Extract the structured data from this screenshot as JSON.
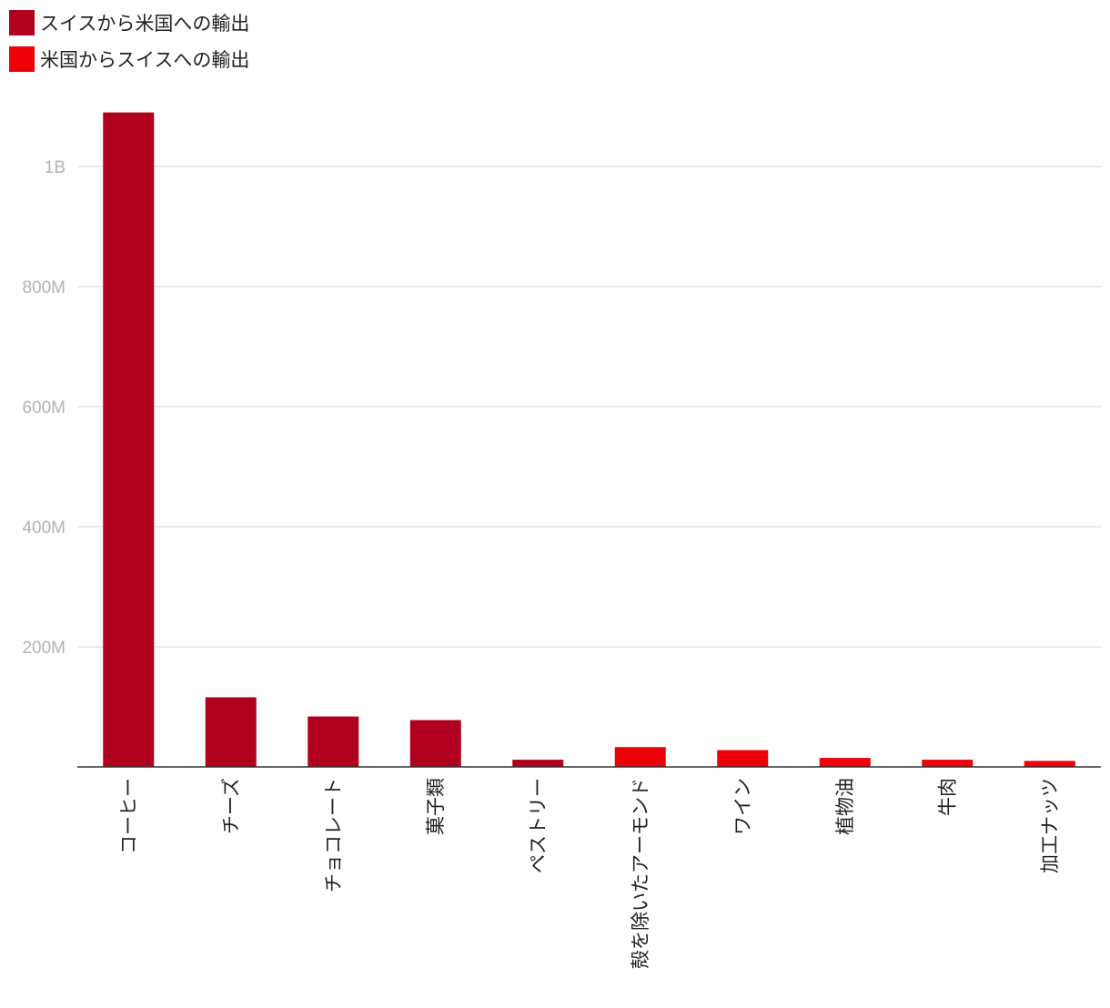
{
  "legend": [
    {
      "label": "スイスから米国への輸出",
      "color": "#b0001e"
    },
    {
      "label": "米国からスイスへの輸出",
      "color": "#ee0008"
    }
  ],
  "chart_data": {
    "type": "bar",
    "title": "",
    "xlabel": "",
    "ylabel": "",
    "ylim": [
      0,
      1100000000
    ],
    "yticks": [
      {
        "value": 200000000,
        "label": "200M"
      },
      {
        "value": 400000000,
        "label": "400M"
      },
      {
        "value": 600000000,
        "label": "600M"
      },
      {
        "value": 800000000,
        "label": "800M"
      },
      {
        "value": 1000000000,
        "label": "1B"
      }
    ],
    "grid": true,
    "legend_position": "top-left",
    "categories": [
      "コーヒー",
      "チーズ",
      "チョコレート",
      "菓子類",
      "ペストリー",
      "殻を除いたアーモンド",
      "ワイン",
      "植物油",
      "牛肉",
      "加工ナッツ"
    ],
    "series": [
      {
        "name": "スイスから米国への輸出",
        "color": "#b0001e",
        "values": [
          1090000000,
          116000000,
          84000000,
          78000000,
          12000000,
          null,
          null,
          null,
          null,
          null
        ]
      },
      {
        "name": "米国からスイスへの輸出",
        "color": "#ee0008",
        "values": [
          null,
          null,
          null,
          null,
          null,
          33000000,
          28000000,
          15000000,
          12000000,
          10000000
        ]
      }
    ]
  }
}
